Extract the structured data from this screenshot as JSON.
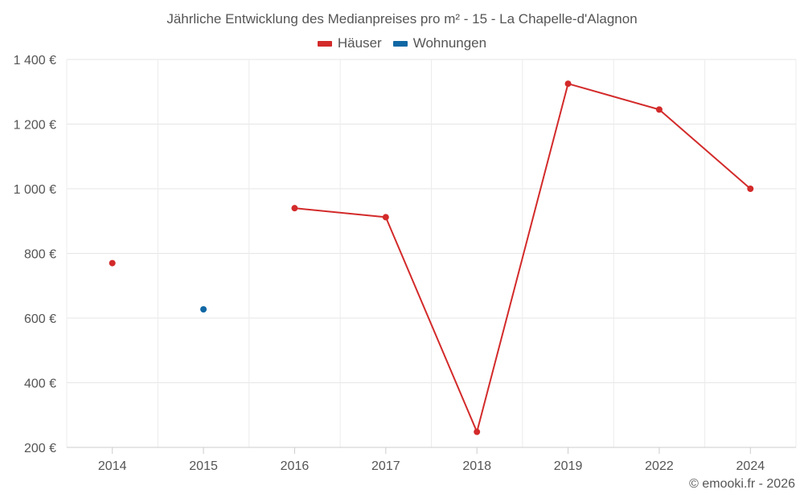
{
  "chart_data": {
    "type": "line",
    "title": "Jährliche Entwicklung des Medianpreises pro m² - 15 - La Chapelle-d'Alagnon",
    "categories": [
      "2014",
      "2015",
      "2016",
      "2017",
      "2018",
      "2019",
      "2022",
      "2024"
    ],
    "series": [
      {
        "name": "Häuser",
        "color": "#d32a2a",
        "values": [
          770,
          null,
          940,
          912,
          248,
          1325,
          1245,
          1000
        ]
      },
      {
        "name": "Wohnungen",
        "color": "#0f67a4",
        "values": [
          null,
          627,
          null,
          null,
          null,
          null,
          null,
          null
        ]
      }
    ],
    "ylim": [
      200,
      1400
    ],
    "yticks": [
      200,
      400,
      600,
      800,
      1000,
      1200,
      1400
    ],
    "ytick_labels": [
      "200 €",
      "400 €",
      "600 €",
      "800 €",
      "1 000 €",
      "1 200 €",
      "1 400 €"
    ],
    "grid": true,
    "legend_position": "top-center"
  },
  "credit": "© emooki.fr - 2026"
}
